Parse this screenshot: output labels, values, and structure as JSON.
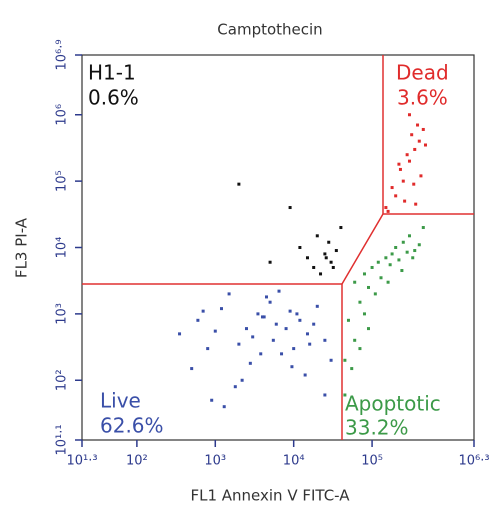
{
  "chart_data": {
    "type": "scatter",
    "title": "Camptothecin",
    "x_label": "FL1 Annexin V FITC-A",
    "y_label": "FL3 PI-A",
    "xscale": "log",
    "yscale": "log",
    "xlim": [
      19.95,
      1995262
    ],
    "ylim": [
      12.59,
      7943282
    ],
    "xticks": [
      {
        "value": 19.95,
        "label": "10¹·³"
      },
      {
        "value": 100,
        "label": "10²"
      },
      {
        "value": 1000,
        "label": "10³"
      },
      {
        "value": 10000,
        "label": "10⁴"
      },
      {
        "value": 100000,
        "label": "10⁵"
      },
      {
        "value": 1995262,
        "label": "10⁶·³"
      }
    ],
    "yticks": [
      {
        "value": 12.59,
        "label": "10¹·¹"
      },
      {
        "value": 100,
        "label": "10²"
      },
      {
        "value": 1000,
        "label": "10³"
      },
      {
        "value": 10000,
        "label": "10⁴"
      },
      {
        "value": 100000,
        "label": "10⁵"
      },
      {
        "value": 1000000,
        "label": "10⁶"
      },
      {
        "value": 7943282,
        "label": "10⁶·⁹"
      }
    ],
    "series": [
      {
        "name": "H1-1",
        "color": "#111111",
        "percent": 0.6,
        "percent_label": "0.6%",
        "x": [
          2000,
          5000,
          9000,
          12000,
          15000,
          18000,
          20000,
          25000,
          28000,
          30000,
          35000,
          40000,
          22000,
          32000,
          26000
        ],
        "y": [
          90000,
          6000,
          40000,
          10000,
          7000,
          5000,
          15000,
          8000,
          12000,
          6000,
          9000,
          20000,
          4000,
          5000,
          7000
        ]
      },
      {
        "name": "Dead",
        "color": "#e02b2b",
        "percent": 3.6,
        "percent_label": "3.6%",
        "x": [
          150000,
          200000,
          250000,
          300000,
          350000,
          400000,
          450000,
          180000,
          230000,
          280000,
          320000,
          380000,
          420000,
          160000,
          260000,
          340000,
          300000,
          220000,
          360000,
          480000
        ],
        "y": [
          40000,
          60000,
          100000,
          200000,
          300000,
          400000,
          600000,
          80000,
          150000,
          250000,
          500000,
          700000,
          120000,
          35000,
          50000,
          90000,
          1000000,
          180000,
          45000,
          350000
        ]
      },
      {
        "name": "Live",
        "color": "#3a4fa8",
        "percent": 62.6,
        "percent_label": "62.6%",
        "x": [
          600,
          1200,
          2500,
          4000,
          6000,
          9000,
          15000,
          25000,
          800,
          1500,
          3000,
          5000,
          7000,
          12000,
          20000,
          30000,
          1000,
          2000,
          3500,
          4500,
          8000,
          10000,
          18000,
          500,
          2200,
          3800,
          6500,
          11000,
          700,
          1800,
          2800,
          5500,
          9500,
          14000,
          350,
          25000,
          1300,
          4200,
          16000,
          900
        ],
        "y": [
          800,
          1200,
          600,
          900,
          700,
          1100,
          500,
          400,
          300,
          2000,
          450,
          1500,
          250,
          800,
          1300,
          200,
          550,
          350,
          1000,
          1800,
          600,
          300,
          700,
          150,
          100,
          250,
          2200,
          1000,
          1100,
          80,
          180,
          400,
          160,
          120,
          500,
          60,
          40,
          900,
          350,
          50
        ]
      },
      {
        "name": "Apoptotic",
        "color": "#3c9a48",
        "percent": 33.2,
        "percent_label": "33.2%",
        "x": [
          60000,
          80000,
          100000,
          120000,
          150000,
          180000,
          200000,
          250000,
          300000,
          350000,
          400000,
          450000,
          90000,
          130000,
          170000,
          220000,
          280000,
          330000,
          70000,
          110000,
          160000,
          240000,
          50000,
          60000,
          80000,
          45000,
          55000,
          70000,
          90000,
          45000
        ],
        "y": [
          3000,
          4000,
          5000,
          6000,
          7000,
          8000,
          10000,
          12000,
          15000,
          9000,
          11000,
          20000,
          2500,
          3500,
          5500,
          6500,
          8500,
          7000,
          1500,
          2000,
          3000,
          4500,
          800,
          400,
          1000,
          200,
          150,
          300,
          600,
          60
        ]
      }
    ]
  }
}
